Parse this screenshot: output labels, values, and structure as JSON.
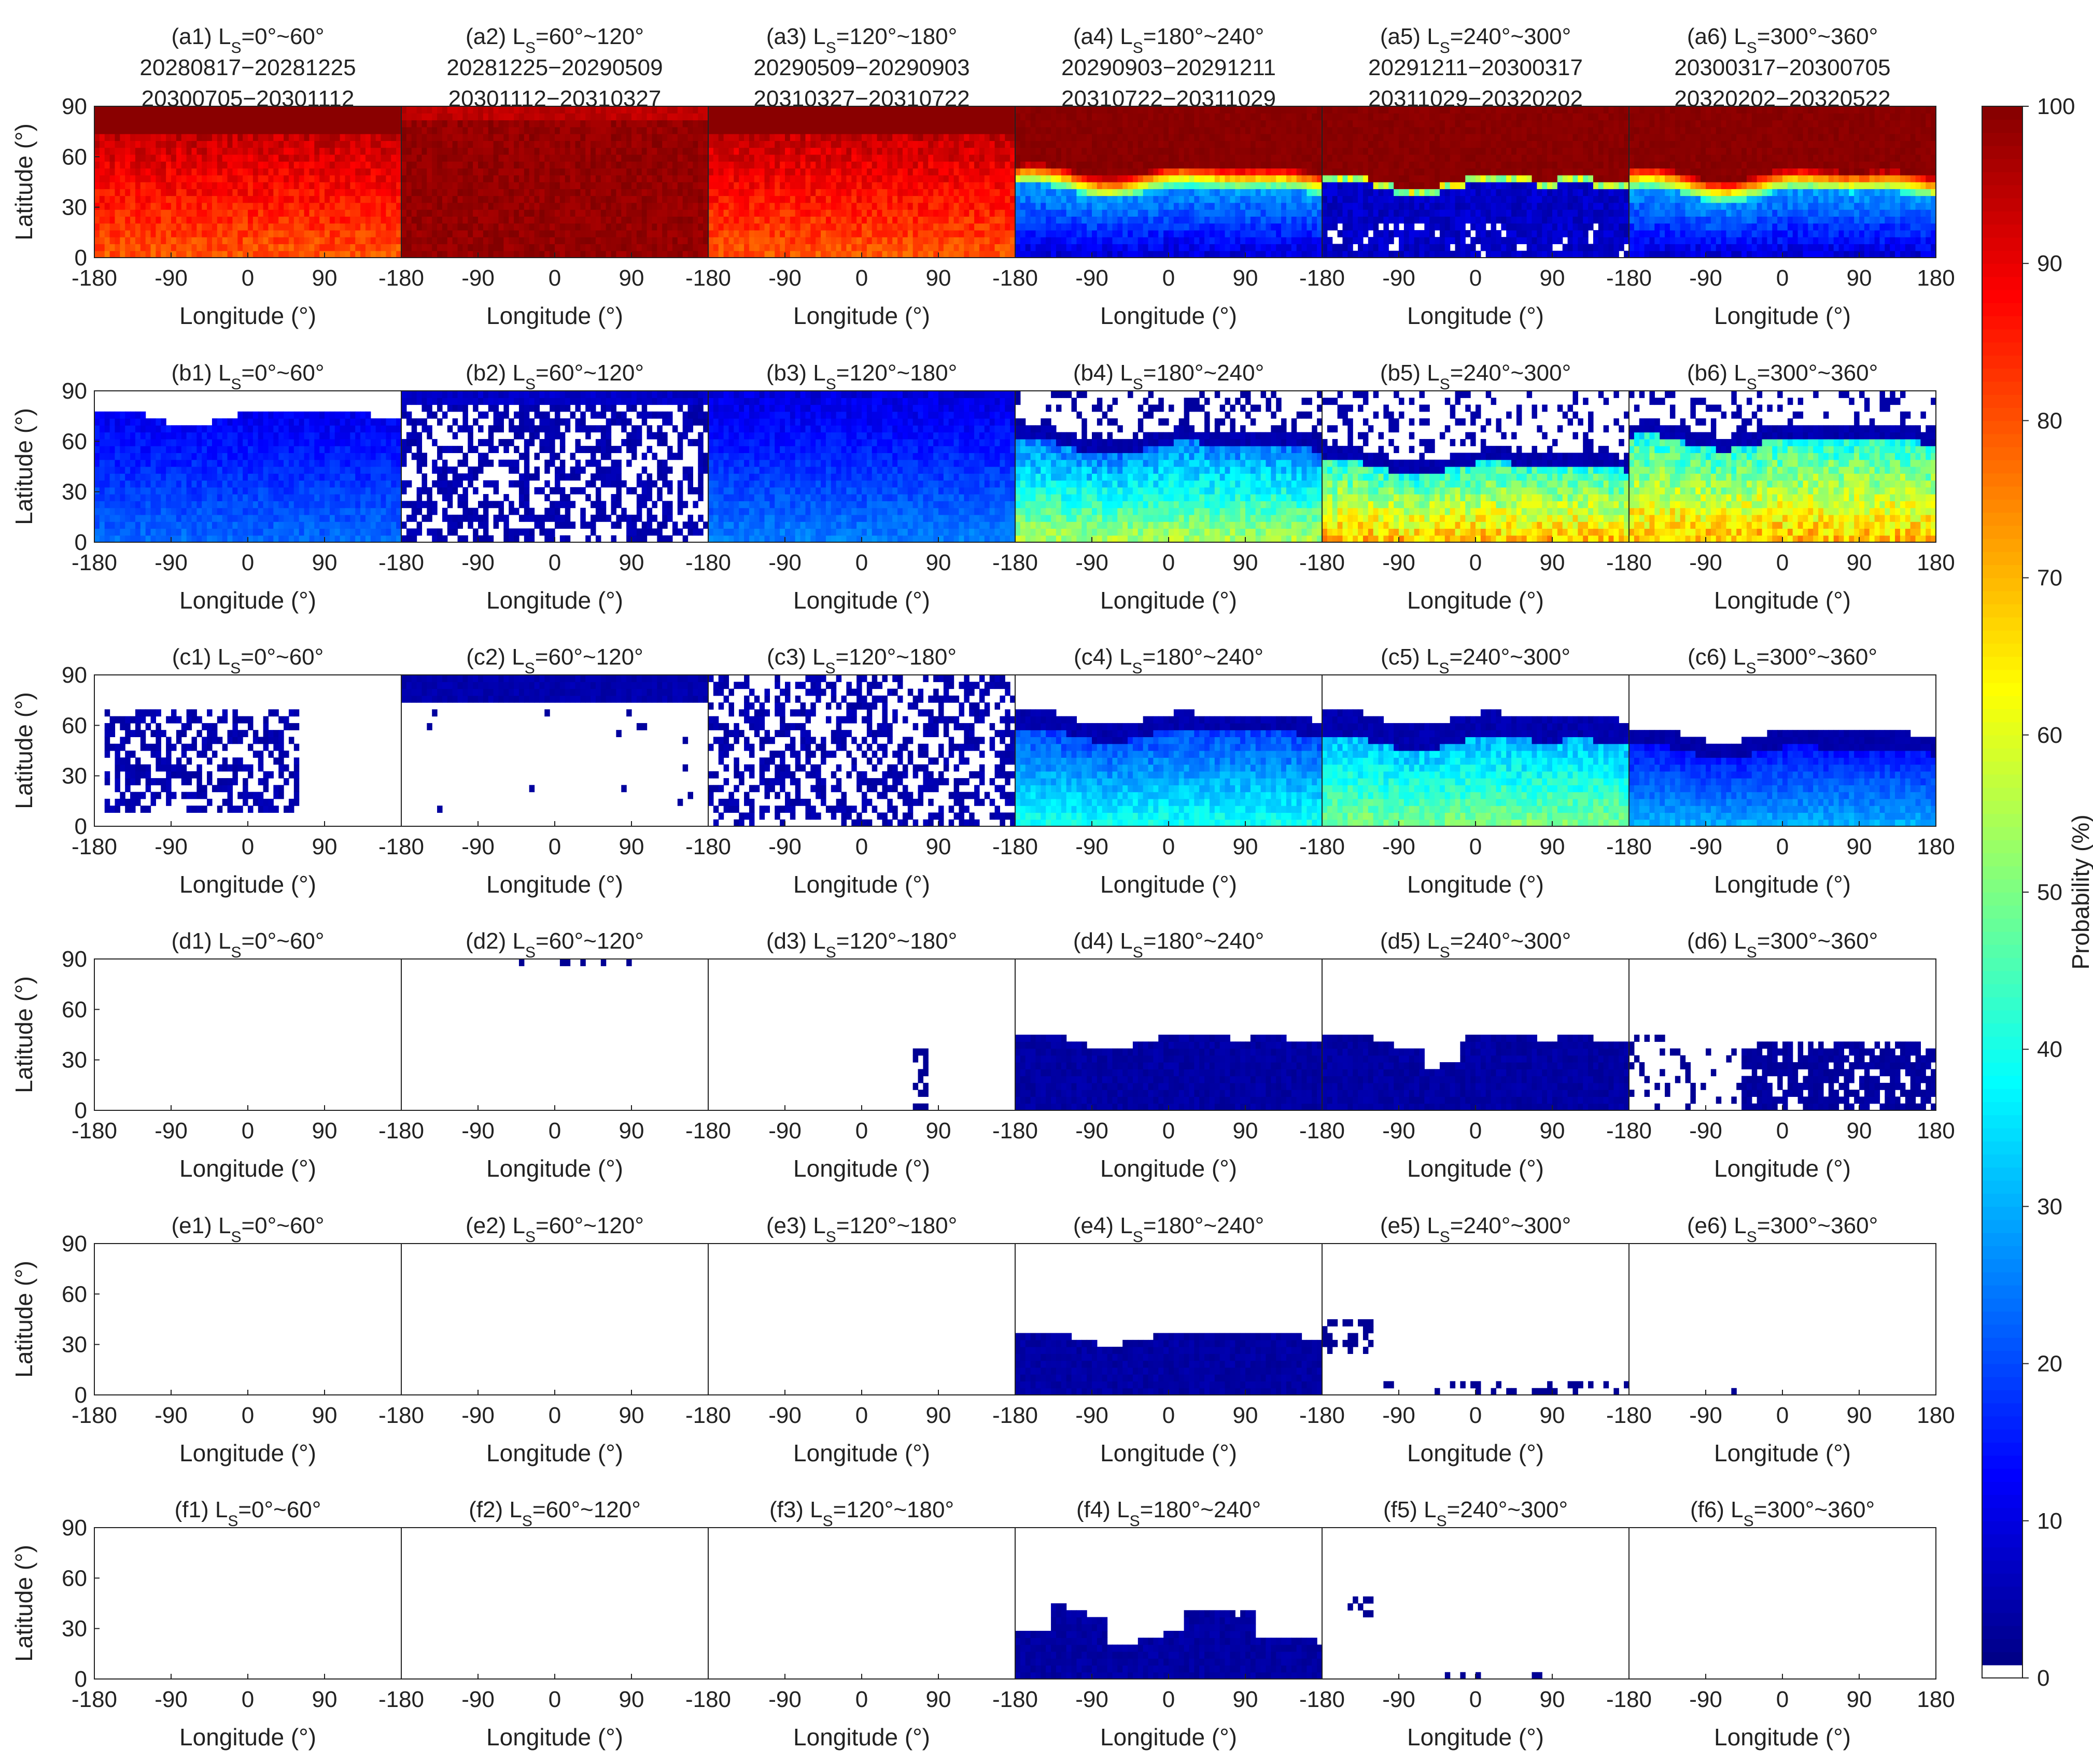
{
  "chart_data": {
    "type": "heatmap",
    "layout": {
      "rows": 6,
      "cols": 6
    },
    "x_axis": {
      "label": "Longitude (°)",
      "range": [
        -180,
        180
      ],
      "ticks": [
        "-180",
        "-90",
        "0",
        "90",
        "180"
      ]
    },
    "y_axis": {
      "label": "Latitude (°)",
      "range": [
        0,
        90
      ],
      "ticks": [
        "0",
        "30",
        "60",
        "90"
      ]
    },
    "colorbar": {
      "label": "Probability (%)",
      "range": [
        0,
        100
      ],
      "ticks": [
        "0",
        "10",
        "20",
        "30",
        "40",
        "50",
        "60",
        "70",
        "80",
        "90",
        "100"
      ],
      "colormap": "jet",
      "zero_color": "#ffffff"
    },
    "panels": [
      {
        "row": 0,
        "col": 0,
        "id": "(a1)",
        "ls": "0°~60°",
        "dates": [
          "20280817−20281225",
          "20300705−20301112"
        ],
        "pattern": "red-full"
      },
      {
        "row": 0,
        "col": 1,
        "id": "(a2)",
        "ls": "60°~120°",
        "dates": [
          "20281225−20290509",
          "20301112−20310327"
        ],
        "pattern": "darkred-full"
      },
      {
        "row": 0,
        "col": 2,
        "id": "(a3)",
        "ls": "120°~180°",
        "dates": [
          "20290509−20290903",
          "20310327−20310722"
        ],
        "pattern": "red-full"
      },
      {
        "row": 0,
        "col": 3,
        "id": "(a4)",
        "ls": "180°~240°",
        "dates": [
          "20290903−20291211",
          "20310722−20311029"
        ],
        "pattern": "band-north",
        "boundary_lat": 40
      },
      {
        "row": 0,
        "col": 4,
        "id": "(a5)",
        "ls": "240°~300°",
        "dates": [
          "20291211−20300317",
          "20311029−20320202"
        ],
        "pattern": "band-north-sharp",
        "boundary_lat": 42
      },
      {
        "row": 0,
        "col": 5,
        "id": "(a6)",
        "ls": "300°~360°",
        "dates": [
          "20300317−20300705",
          "20320202−20320522"
        ],
        "pattern": "band-north",
        "boundary_lat": 38
      },
      {
        "row": 1,
        "col": 0,
        "id": "(b1)",
        "ls": "0°~60°",
        "pattern": "blue-below",
        "top_lat": 75
      },
      {
        "row": 1,
        "col": 1,
        "id": "(b2)",
        "ls": "60°~120°",
        "pattern": "blue-patchy"
      },
      {
        "row": 1,
        "col": 2,
        "id": "(b3)",
        "ls": "120°~180°",
        "pattern": "blue-full"
      },
      {
        "row": 1,
        "col": 3,
        "id": "(b4)",
        "ls": "180°~240°",
        "pattern": "green-band",
        "top_lat": 65
      },
      {
        "row": 1,
        "col": 4,
        "id": "(b5)",
        "ls": "240°~300°",
        "pattern": "yellow-band",
        "top_lat": 45
      },
      {
        "row": 1,
        "col": 5,
        "id": "(b6)",
        "ls": "300°~360°",
        "pattern": "yellow-band",
        "top_lat": 60
      },
      {
        "row": 2,
        "col": 0,
        "id": "(c1)",
        "ls": "0°~60°",
        "pattern": "sparse-blue-blob"
      },
      {
        "row": 2,
        "col": 1,
        "id": "(c2)",
        "ls": "60°~120°",
        "pattern": "blue-top-strip"
      },
      {
        "row": 2,
        "col": 2,
        "id": "(c3)",
        "ls": "120°~180°",
        "pattern": "blue-patchy-2"
      },
      {
        "row": 2,
        "col": 3,
        "id": "(c4)",
        "ls": "180°~240°",
        "pattern": "cyan-band",
        "top_lat": 65
      },
      {
        "row": 2,
        "col": 4,
        "id": "(c5)",
        "ls": "240°~300°",
        "pattern": "green-band-mid",
        "top_lat": 65
      },
      {
        "row": 2,
        "col": 5,
        "id": "(c6)",
        "ls": "300°~360°",
        "pattern": "blue-band",
        "top_lat": 55
      },
      {
        "row": 3,
        "col": 0,
        "id": "(d1)",
        "ls": "0°~60°",
        "pattern": "empty"
      },
      {
        "row": 3,
        "col": 1,
        "id": "(d2)",
        "ls": "60°~120°",
        "pattern": "empty-top-dots"
      },
      {
        "row": 3,
        "col": 2,
        "id": "(d3)",
        "ls": "120°~180°",
        "pattern": "empty-few"
      },
      {
        "row": 3,
        "col": 3,
        "id": "(d4)",
        "ls": "180°~240°",
        "pattern": "navy-below",
        "top_lat": 42
      },
      {
        "row": 3,
        "col": 4,
        "id": "(d5)",
        "ls": "240°~300°",
        "pattern": "navy-below-dip",
        "top_lat": 42
      },
      {
        "row": 3,
        "col": 5,
        "id": "(d6)",
        "ls": "300°~360°",
        "pattern": "navy-sparse",
        "top_lat": 40
      },
      {
        "row": 4,
        "col": 0,
        "id": "(e1)",
        "ls": "0°~60°",
        "pattern": "empty"
      },
      {
        "row": 4,
        "col": 1,
        "id": "(e2)",
        "ls": "60°~120°",
        "pattern": "empty"
      },
      {
        "row": 4,
        "col": 2,
        "id": "(e3)",
        "ls": "120°~180°",
        "pattern": "empty"
      },
      {
        "row": 4,
        "col": 3,
        "id": "(e4)",
        "ls": "180°~240°",
        "pattern": "navy-below",
        "top_lat": 35
      },
      {
        "row": 4,
        "col": 4,
        "id": "(e5)",
        "ls": "240°~300°",
        "pattern": "few-dots"
      },
      {
        "row": 4,
        "col": 5,
        "id": "(e6)",
        "ls": "300°~360°",
        "pattern": "single-dot"
      },
      {
        "row": 5,
        "col": 0,
        "id": "(f1)",
        "ls": "0°~60°",
        "pattern": "empty"
      },
      {
        "row": 5,
        "col": 1,
        "id": "(f2)",
        "ls": "60°~120°",
        "pattern": "empty"
      },
      {
        "row": 5,
        "col": 2,
        "id": "(f3)",
        "ls": "120°~180°",
        "pattern": "empty"
      },
      {
        "row": 5,
        "col": 3,
        "id": "(f4)",
        "ls": "180°~240°",
        "pattern": "navy-hump",
        "top_lat": 30
      },
      {
        "row": 5,
        "col": 4,
        "id": "(f5)",
        "ls": "240°~300°",
        "pattern": "few-dots-2"
      },
      {
        "row": 5,
        "col": 5,
        "id": "(f6)",
        "ls": "300°~360°",
        "pattern": "empty"
      }
    ]
  }
}
